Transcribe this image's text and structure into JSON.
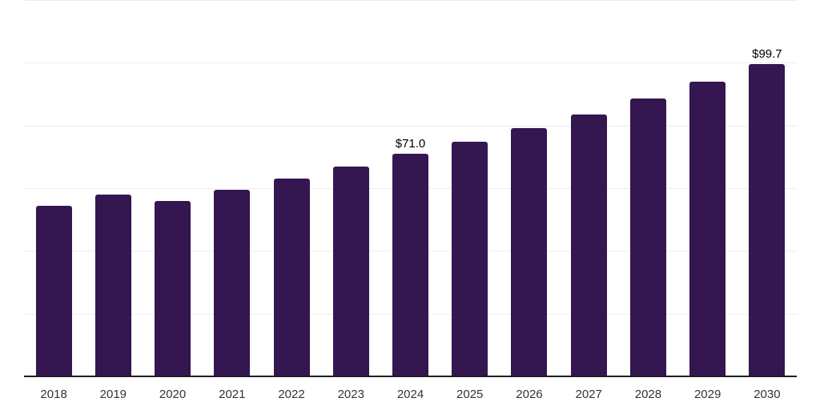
{
  "chart_data": {
    "type": "bar",
    "title": "",
    "xlabel": "",
    "ylabel": "",
    "legend": "none",
    "grid": "horizontal",
    "categories": [
      "2018",
      "2019",
      "2020",
      "2021",
      "2022",
      "2023",
      "2024",
      "2025",
      "2026",
      "2027",
      "2028",
      "2029",
      "2030"
    ],
    "values": [
      54.5,
      58.0,
      55.9,
      59.5,
      63.0,
      66.9,
      71.0,
      74.7,
      79.1,
      83.4,
      88.5,
      94.0,
      99.7
    ],
    "data_labels": [
      {
        "category": "2024",
        "label": "$71.0"
      },
      {
        "category": "2030",
        "label": "$99.7"
      }
    ],
    "ylim": [
      0,
      120
    ],
    "grid_step": 20,
    "colors": {
      "bar": "#341650",
      "gridline": "#ededed",
      "axis_line": "#1f1f1f",
      "x_tick_label": "#333333",
      "data_label": "#000000",
      "background": "#ffffff"
    }
  }
}
